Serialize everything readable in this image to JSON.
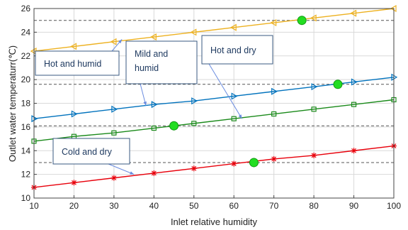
{
  "chart_data": {
    "type": "line",
    "xlabel": "Inlet relative humidity",
    "ylabel": "Outlet water temperaturr(℃)",
    "xlim": [
      10,
      100
    ],
    "ylim": [
      10,
      26
    ],
    "xticks": [
      "10",
      "20",
      "30",
      "40",
      "50",
      "60",
      "70",
      "80",
      "90",
      "100"
    ],
    "yticks": [
      "10",
      "12",
      "14",
      "16",
      "18",
      "20",
      "22",
      "24",
      "26"
    ],
    "grid": true,
    "x": [
      10,
      20,
      30,
      40,
      50,
      60,
      70,
      80,
      90,
      100
    ],
    "series": [
      {
        "values": [
          22.4,
          22.8,
          23.2,
          23.6,
          24.0,
          24.4,
          24.8,
          25.2,
          25.6,
          26.0
        ],
        "color": "#EDB120",
        "marker": "triangle-left"
      },
      {
        "values": [
          16.7,
          17.1,
          17.5,
          17.9,
          18.2,
          18.6,
          19.0,
          19.4,
          19.8,
          20.2
        ],
        "color": "#0072BD",
        "marker": "triangle-right"
      },
      {
        "values": [
          14.8,
          15.2,
          15.5,
          15.9,
          16.3,
          16.7,
          17.1,
          17.5,
          17.9,
          18.3
        ],
        "color": "#1A8A1A",
        "marker": "square"
      },
      {
        "values": [
          10.9,
          11.3,
          11.7,
          12.1,
          12.5,
          12.9,
          13.3,
          13.6,
          14.0,
          14.4
        ],
        "color": "#E8000B",
        "marker": "star"
      }
    ],
    "reference_lines": [
      25.0,
      19.6,
      16.1,
      13.0
    ],
    "highlight_points": [
      {
        "x": 77,
        "y": 25.0
      },
      {
        "x": 86,
        "y": 19.6
      },
      {
        "x": 45,
        "y": 16.1
      },
      {
        "x": 65,
        "y": 13.0
      }
    ],
    "annotations": [
      {
        "label": "Hot and humid",
        "target": {
          "x": 32,
          "y": 23.4
        }
      },
      {
        "label": "Mild and humid",
        "target": {
          "x": 38,
          "y": 17.8
        }
      },
      {
        "label": "Hot and dry",
        "target": {
          "x": 62,
          "y": 16.7
        }
      },
      {
        "label": "Cold and dry",
        "target": {
          "x": 35,
          "y": 12.0
        }
      }
    ],
    "highlight_color": "#22DD22",
    "annotation_arrow_color": "#6A8CE0"
  }
}
